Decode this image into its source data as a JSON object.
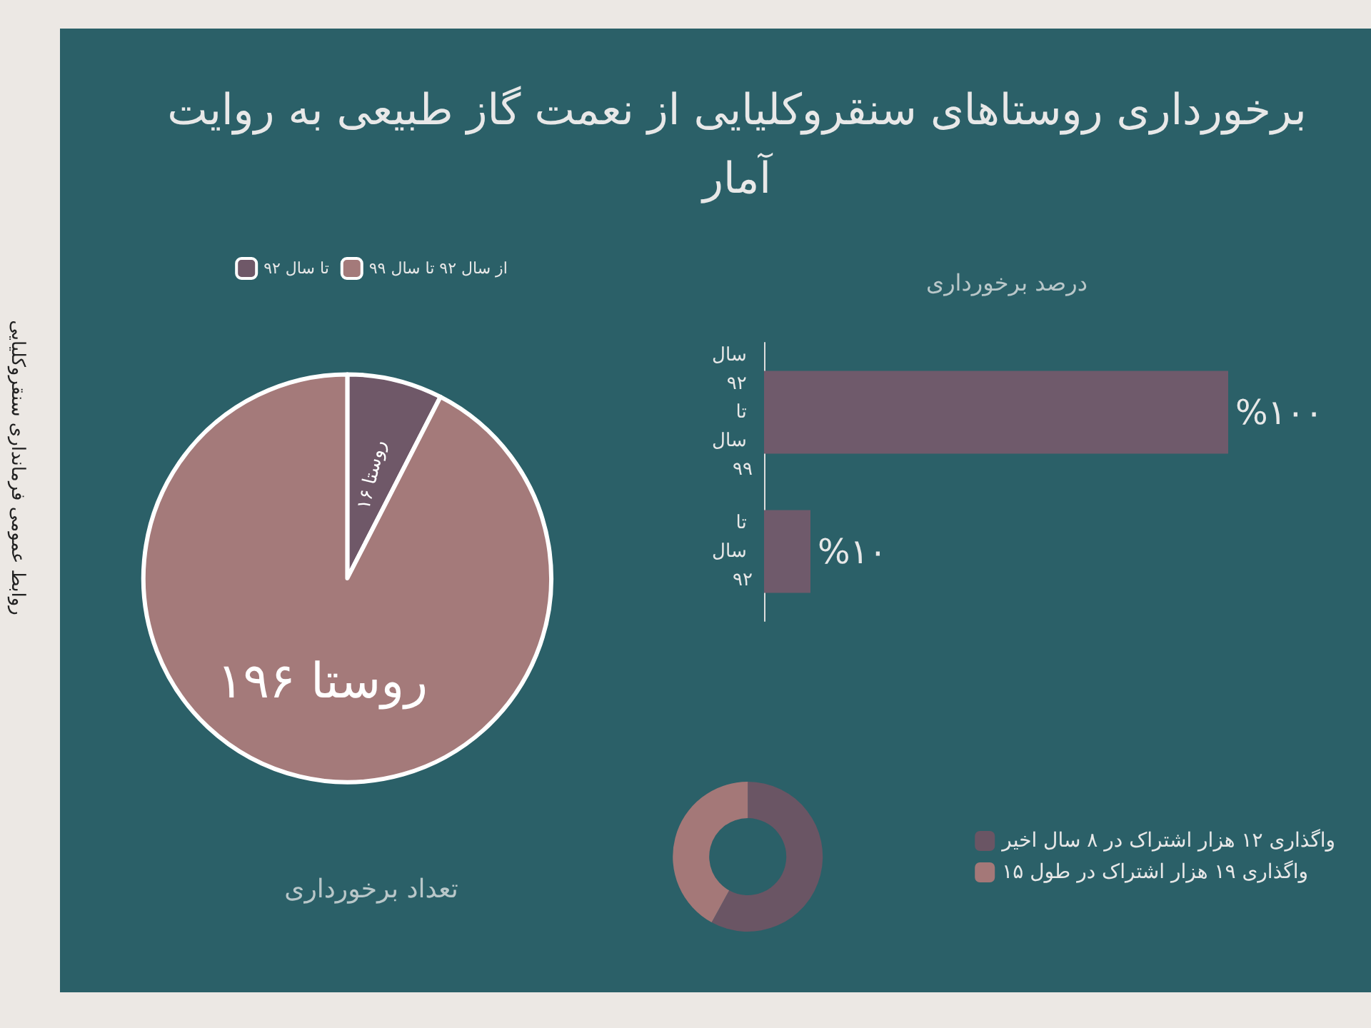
{
  "chart_data": [
    {
      "type": "other",
      "title": "برخورداری روستاهای سنقروکلیایی از نعمت گاز طبیعی به روایت آمار",
      "annotations": [
        "روابط عمومی فرمانداری سنقروکلیایی"
      ]
    },
    {
      "type": "pie",
      "title": "تعداد برخورداری",
      "categories": [
        "تا سال ۹۲",
        "از سال ۹۲ تا سال ۹۹"
      ],
      "values": [
        16,
        196
      ],
      "value_labels": [
        "۱۶ روستا",
        "۱۹۶ روستا"
      ],
      "colors": [
        "#6f5868",
        "#a47a7a"
      ],
      "legend": "top"
    },
    {
      "type": "bar",
      "orientation": "horizontal",
      "title": "درصد برخورداری",
      "categories": [
        "سال ۹۲ تا سال ۹۹",
        "تا سال ۹۲"
      ],
      "values": [
        100,
        10
      ],
      "value_labels": [
        "%۱۰۰",
        "%۱۰"
      ],
      "color": "#6f5a6b"
    },
    {
      "type": "donut",
      "categories": [
        "واگذاری ۱۲ هزار اشتراک در ۸ سال اخیر",
        "واگذاری ۱۹ هزار اشتراک در طول ۱۵"
      ],
      "values": [
        58,
        42
      ],
      "colors": [
        "#6a5564",
        "#a47878"
      ],
      "legend": "right"
    }
  ]
}
